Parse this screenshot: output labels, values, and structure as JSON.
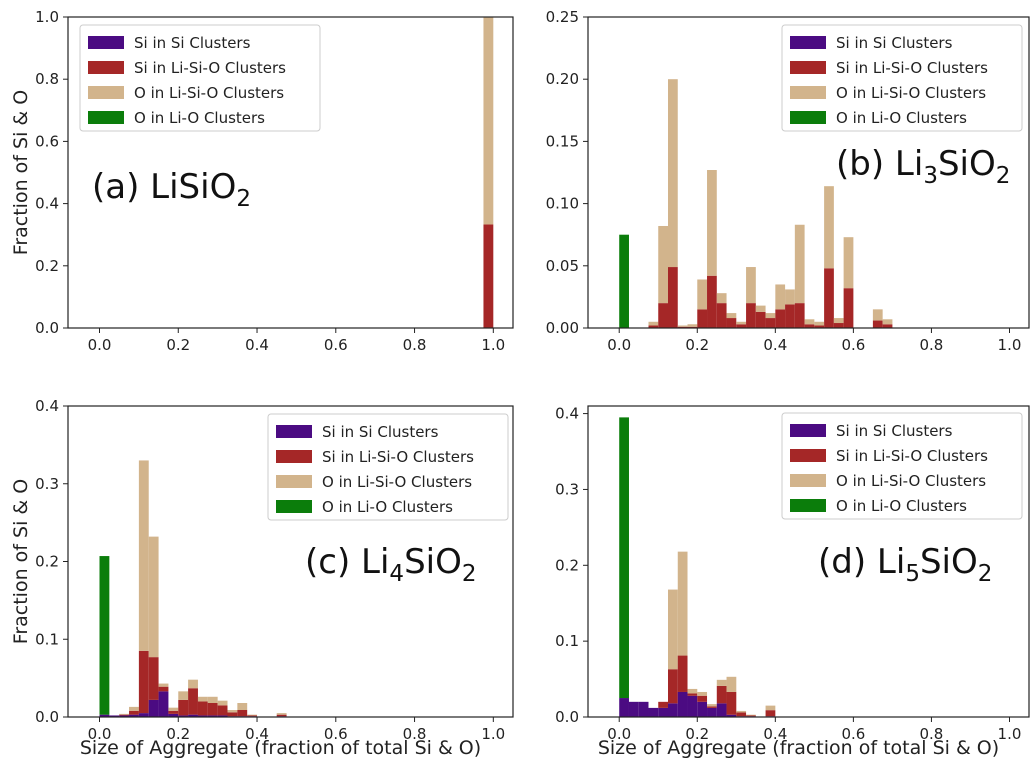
{
  "colors": {
    "si_si": "#4b0b82",
    "si_lisio": "#a52727",
    "o_lisio": "#d2b48c",
    "o_lio": "#0b7d0b"
  },
  "legend": [
    {
      "key": "si_si",
      "label": "Si in Si Clusters"
    },
    {
      "key": "si_lisio",
      "label": "Si in Li-Si-O Clusters"
    },
    {
      "key": "o_lisio",
      "label": "O in Li-Si-O Clusters"
    },
    {
      "key": "o_lio",
      "label": "O in Li-O Clusters"
    }
  ],
  "figure": {
    "xlabel": "Size of Aggregate (fraction of total Si & O)",
    "ylabel": "Fraction of Si & O"
  },
  "chart_data": [
    {
      "type": "bar",
      "stacked": true,
      "panel_label": "(a) LiSiO",
      "panel_sub": "2",
      "xlim": [
        -0.08,
        1.05
      ],
      "xticks": [
        "0.0",
        "0.2",
        "0.4",
        "0.6",
        "0.8",
        "1.0"
      ],
      "ylim": [
        0,
        1.0
      ],
      "yticks": [
        "0.0",
        "0.2",
        "0.4",
        "0.6",
        "0.8",
        "1.0"
      ],
      "bin_width": 0.025,
      "legend_position": "top-left",
      "show_xlabel": false,
      "show_ylabel": true,
      "bins": [
        {
          "x": 0.9875,
          "si_si": 0,
          "si_lisio": 0.333,
          "o_lisio": 0.667,
          "o_lio": 0
        }
      ]
    },
    {
      "type": "bar",
      "stacked": true,
      "panel_label": "(b) Li",
      "panel_num": "3",
      "panel_rest": "SiO",
      "panel_sub": "2",
      "xlim": [
        -0.08,
        1.05
      ],
      "xticks": [
        "0.0",
        "0.2",
        "0.4",
        "0.6",
        "0.8",
        "1.0"
      ],
      "ylim": [
        0,
        0.25
      ],
      "yticks": [
        "0.00",
        "0.05",
        "0.10",
        "0.15",
        "0.20",
        "0.25"
      ],
      "bin_width": 0.025,
      "legend_position": "top-right",
      "show_xlabel": false,
      "show_ylabel": false,
      "bins": [
        {
          "x": 0.0125,
          "si_si": 0,
          "si_lisio": 0,
          "o_lisio": 0,
          "o_lio": 0.075
        },
        {
          "x": 0.0875,
          "si_si": 0,
          "si_lisio": 0.002,
          "o_lisio": 0.003,
          "o_lio": 0
        },
        {
          "x": 0.1125,
          "si_si": 0,
          "si_lisio": 0.02,
          "o_lisio": 0.062,
          "o_lio": 0
        },
        {
          "x": 0.1375,
          "si_si": 0,
          "si_lisio": 0.049,
          "o_lisio": 0.151,
          "o_lio": 0
        },
        {
          "x": 0.1625,
          "si_si": 0,
          "si_lisio": 0.001,
          "o_lisio": 0.001,
          "o_lio": 0
        },
        {
          "x": 0.1875,
          "si_si": 0,
          "si_lisio": 0.001,
          "o_lisio": 0.002,
          "o_lio": 0
        },
        {
          "x": 0.2125,
          "si_si": 0,
          "si_lisio": 0.015,
          "o_lisio": 0.024,
          "o_lio": 0
        },
        {
          "x": 0.2375,
          "si_si": 0,
          "si_lisio": 0.042,
          "o_lisio": 0.085,
          "o_lio": 0
        },
        {
          "x": 0.2625,
          "si_si": 0,
          "si_lisio": 0.02,
          "o_lisio": 0.008,
          "o_lio": 0
        },
        {
          "x": 0.2875,
          "si_si": 0,
          "si_lisio": 0.008,
          "o_lisio": 0.004,
          "o_lio": 0
        },
        {
          "x": 0.3125,
          "si_si": 0,
          "si_lisio": 0.003,
          "o_lisio": 0.002,
          "o_lio": 0
        },
        {
          "x": 0.3375,
          "si_si": 0,
          "si_lisio": 0.02,
          "o_lisio": 0.029,
          "o_lio": 0
        },
        {
          "x": 0.3625,
          "si_si": 0,
          "si_lisio": 0.013,
          "o_lisio": 0.005,
          "o_lio": 0
        },
        {
          "x": 0.3875,
          "si_si": 0,
          "si_lisio": 0.008,
          "o_lisio": 0.004,
          "o_lio": 0
        },
        {
          "x": 0.4125,
          "si_si": 0,
          "si_lisio": 0.015,
          "o_lisio": 0.02,
          "o_lio": 0
        },
        {
          "x": 0.4375,
          "si_si": 0,
          "si_lisio": 0.019,
          "o_lisio": 0.012,
          "o_lio": 0
        },
        {
          "x": 0.4625,
          "si_si": 0,
          "si_lisio": 0.02,
          "o_lisio": 0.063,
          "o_lio": 0
        },
        {
          "x": 0.4875,
          "si_si": 0,
          "si_lisio": 0.003,
          "o_lisio": 0.004,
          "o_lio": 0
        },
        {
          "x": 0.5125,
          "si_si": 0,
          "si_lisio": 0.002,
          "o_lisio": 0.003,
          "o_lio": 0
        },
        {
          "x": 0.5375,
          "si_si": 0,
          "si_lisio": 0.048,
          "o_lisio": 0.066,
          "o_lio": 0
        },
        {
          "x": 0.5625,
          "si_si": 0,
          "si_lisio": 0.004,
          "o_lisio": 0.004,
          "o_lio": 0
        },
        {
          "x": 0.5875,
          "si_si": 0,
          "si_lisio": 0.032,
          "o_lisio": 0.041,
          "o_lio": 0
        },
        {
          "x": 0.6625,
          "si_si": 0,
          "si_lisio": 0.006,
          "o_lisio": 0.009,
          "o_lio": 0
        },
        {
          "x": 0.6875,
          "si_si": 0,
          "si_lisio": 0.003,
          "o_lisio": 0.004,
          "o_lio": 0
        }
      ]
    },
    {
      "type": "bar",
      "stacked": true,
      "panel_label": "(c) Li",
      "panel_num": "4",
      "panel_rest": "SiO",
      "panel_sub": "2",
      "xlim": [
        -0.08,
        1.05
      ],
      "xticks": [
        "0.0",
        "0.2",
        "0.4",
        "0.6",
        "0.8",
        "1.0"
      ],
      "ylim": [
        0,
        0.4
      ],
      "yticks": [
        "0.0",
        "0.1",
        "0.2",
        "0.3",
        "0.4"
      ],
      "bin_width": 0.025,
      "legend_position": "top-right",
      "show_xlabel": true,
      "show_ylabel": true,
      "bins": [
        {
          "x": 0.0125,
          "si_si": 0.003,
          "si_lisio": 0,
          "o_lisio": 0,
          "o_lio": 0.204
        },
        {
          "x": 0.0375,
          "si_si": 0.002,
          "si_lisio": 0,
          "o_lisio": 0,
          "o_lio": 0
        },
        {
          "x": 0.0625,
          "si_si": 0.002,
          "si_lisio": 0.001,
          "o_lisio": 0.001,
          "o_lio": 0
        },
        {
          "x": 0.0875,
          "si_si": 0.003,
          "si_lisio": 0.005,
          "o_lisio": 0.005,
          "o_lio": 0
        },
        {
          "x": 0.1125,
          "si_si": 0.005,
          "si_lisio": 0.08,
          "o_lisio": 0.245,
          "o_lio": 0
        },
        {
          "x": 0.1375,
          "si_si": 0.022,
          "si_lisio": 0.055,
          "o_lisio": 0.155,
          "o_lio": 0
        },
        {
          "x": 0.1625,
          "si_si": 0.033,
          "si_lisio": 0.006,
          "o_lisio": 0.004,
          "o_lio": 0
        },
        {
          "x": 0.1875,
          "si_si": 0.004,
          "si_lisio": 0.004,
          "o_lisio": 0.004,
          "o_lio": 0
        },
        {
          "x": 0.2125,
          "si_si": 0.002,
          "si_lisio": 0.02,
          "o_lisio": 0.011,
          "o_lio": 0
        },
        {
          "x": 0.2375,
          "si_si": 0.003,
          "si_lisio": 0.034,
          "o_lisio": 0.011,
          "o_lio": 0
        },
        {
          "x": 0.2625,
          "si_si": 0.002,
          "si_lisio": 0.018,
          "o_lisio": 0.006,
          "o_lio": 0
        },
        {
          "x": 0.2875,
          "si_si": 0.002,
          "si_lisio": 0.016,
          "o_lisio": 0.008,
          "o_lio": 0
        },
        {
          "x": 0.3125,
          "si_si": 0.002,
          "si_lisio": 0.013,
          "o_lisio": 0.006,
          "o_lio": 0
        },
        {
          "x": 0.3375,
          "si_si": 0.001,
          "si_lisio": 0.005,
          "o_lisio": 0.003,
          "o_lio": 0
        },
        {
          "x": 0.3625,
          "si_si": 0.001,
          "si_lisio": 0.008,
          "o_lisio": 0.009,
          "o_lio": 0
        },
        {
          "x": 0.3875,
          "si_si": 0.001,
          "si_lisio": 0.001,
          "o_lisio": 0.001,
          "o_lio": 0
        },
        {
          "x": 0.4625,
          "si_si": 0.001,
          "si_lisio": 0.002,
          "o_lisio": 0.002,
          "o_lio": 0
        }
      ]
    },
    {
      "type": "bar",
      "stacked": true,
      "panel_label": "(d) Li",
      "panel_num": "5",
      "panel_rest": "SiO",
      "panel_sub": "2",
      "xlim": [
        -0.08,
        1.05
      ],
      "xticks": [
        "0.0",
        "0.2",
        "0.4",
        "0.6",
        "0.8",
        "1.0"
      ],
      "ylim": [
        0,
        0.41
      ],
      "yticks": [
        "0.0",
        "0.1",
        "0.2",
        "0.3",
        "0.4"
      ],
      "bin_width": 0.025,
      "legend_position": "top-right",
      "show_xlabel": true,
      "show_ylabel": false,
      "bins": [
        {
          "x": 0.0125,
          "si_si": 0.025,
          "si_lisio": 0,
          "o_lisio": 0,
          "o_lio": 0.37
        },
        {
          "x": 0.0375,
          "si_si": 0.02,
          "si_lisio": 0,
          "o_lisio": 0,
          "o_lio": 0
        },
        {
          "x": 0.0625,
          "si_si": 0.02,
          "si_lisio": 0,
          "o_lisio": 0,
          "o_lio": 0
        },
        {
          "x": 0.0875,
          "si_si": 0.012,
          "si_lisio": 0,
          "o_lisio": 0,
          "o_lio": 0
        },
        {
          "x": 0.1125,
          "si_si": 0.012,
          "si_lisio": 0.008,
          "o_lisio": 0,
          "o_lio": 0
        },
        {
          "x": 0.1375,
          "si_si": 0.018,
          "si_lisio": 0.045,
          "o_lisio": 0.105,
          "o_lio": 0
        },
        {
          "x": 0.1625,
          "si_si": 0.033,
          "si_lisio": 0.048,
          "o_lisio": 0.137,
          "o_lio": 0
        },
        {
          "x": 0.1875,
          "si_si": 0.028,
          "si_lisio": 0.003,
          "o_lisio": 0.006,
          "o_lio": 0
        },
        {
          "x": 0.2125,
          "si_si": 0.02,
          "si_lisio": 0.008,
          "o_lisio": 0.005,
          "o_lio": 0
        },
        {
          "x": 0.2375,
          "si_si": 0.012,
          "si_lisio": 0.002,
          "o_lisio": 0.003,
          "o_lio": 0
        },
        {
          "x": 0.2625,
          "si_si": 0.018,
          "si_lisio": 0.023,
          "o_lisio": 0.008,
          "o_lio": 0
        },
        {
          "x": 0.2875,
          "si_si": 0.003,
          "si_lisio": 0.03,
          "o_lisio": 0.02,
          "o_lio": 0
        },
        {
          "x": 0.3125,
          "si_si": 0.001,
          "si_lisio": 0.005,
          "o_lisio": 0.002,
          "o_lio": 0
        },
        {
          "x": 0.3375,
          "si_si": 0.001,
          "si_lisio": 0.001,
          "o_lisio": 0.001,
          "o_lio": 0
        },
        {
          "x": 0.3875,
          "si_si": 0.001,
          "si_lisio": 0.008,
          "o_lisio": 0.006,
          "o_lio": 0
        }
      ]
    }
  ]
}
